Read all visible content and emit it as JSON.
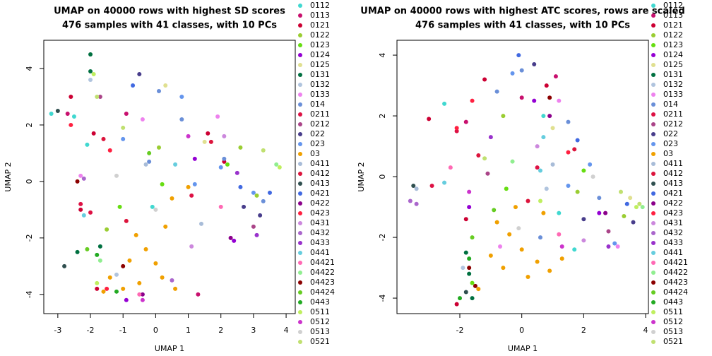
{
  "chart_data": [
    {
      "type": "scatter",
      "title": "UMAP on 40000 rows with highest SD scores",
      "subtitle": "476 samples with 41 classes, with 10 PCs",
      "x_label": "UMAP 1",
      "y_label": "UMAP 2",
      "xlim": [
        -3.43,
        4.28
      ],
      "ylim": [
        -4.68,
        5.0
      ],
      "xticks": [
        -3,
        -2,
        -1,
        0,
        1,
        2,
        3,
        4
      ],
      "yticks": [
        -4,
        -2,
        0,
        2,
        4
      ],
      "series": [
        {
          "name": "0112",
          "color": "#40d8d0",
          "x": [
            -3.2,
            -2.1,
            -2.5,
            -0.1
          ],
          "y": [
            2.4,
            1.3,
            2.3,
            -0.9
          ]
        },
        {
          "name": "0113",
          "color": "#c8106e",
          "x": [
            -2.7,
            -0.9,
            1.3
          ],
          "y": [
            2.4,
            2.4,
            -4.0
          ]
        },
        {
          "name": "0121",
          "color": "#cc0033",
          "x": [
            -2.6,
            -1.9,
            -1.8,
            -2.3,
            1.6,
            2.1
          ],
          "y": [
            3.0,
            1.7,
            -3.8,
            -1.0,
            1.7,
            0.7
          ]
        },
        {
          "name": "0122",
          "color": "#9acd32",
          "x": [
            -1.5,
            0.1,
            2.6,
            3.1
          ],
          "y": [
            -1.7,
            1.2,
            1.2,
            -0.5
          ]
        },
        {
          "name": "0123",
          "color": "#66dd11",
          "x": [
            -1.1,
            0.2,
            2.2
          ],
          "y": [
            -0.9,
            -0.1,
            0.6
          ]
        },
        {
          "name": "0124",
          "color": "#9400d3",
          "x": [
            -0.9,
            1.2,
            2.4
          ],
          "y": [
            -4.2,
            0.8,
            -2.1
          ]
        },
        {
          "name": "0125",
          "color": "#e0e090",
          "x": [
            0.3,
            1.5
          ],
          "y": [
            3.4,
            1.4
          ]
        },
        {
          "name": "0131",
          "color": "#007040",
          "x": [
            -2.0,
            -2.0,
            -2.4,
            -1.7
          ],
          "y": [
            4.5,
            3.9,
            -2.5,
            -2.3
          ]
        },
        {
          "name": "0132",
          "color": "#b0c4de",
          "x": [
            -2.0,
            -1.2
          ],
          "y": [
            3.6,
            -3.3
          ]
        },
        {
          "name": "0133",
          "color": "#ee82ee",
          "x": [
            -2.3,
            -0.4,
            1.9
          ],
          "y": [
            0.2,
            2.2,
            2.3
          ]
        },
        {
          "name": "014",
          "color": "#6a8fd8",
          "x": [
            0.1,
            0.8,
            2.1,
            3.3,
            -0.2
          ],
          "y": [
            3.2,
            2.2,
            0.8,
            -0.7,
            0.7
          ]
        },
        {
          "name": "0211",
          "color": "#dd1144",
          "x": [
            -2.3,
            -2.0,
            1.1
          ],
          "y": [
            -0.8,
            -1.1,
            -0.5
          ]
        },
        {
          "name": "0212",
          "color": "#aa4488",
          "x": [
            -1.7,
            3.0
          ],
          "y": [
            3.0,
            -1.6
          ]
        },
        {
          "name": "022",
          "color": "#483d8b",
          "x": [
            2.7,
            3.2,
            -0.5
          ],
          "y": [
            -0.9,
            -1.2,
            3.8
          ]
        },
        {
          "name": "023",
          "color": "#6495ed",
          "x": [
            2.0,
            1.2,
            3.0,
            0.8,
            -1.0
          ],
          "y": [
            0.5,
            -0.1,
            -0.4,
            3.0,
            1.5
          ]
        },
        {
          "name": "03",
          "color": "#f0a000",
          "x": [
            -1.4,
            -1.0,
            -0.5,
            0.2,
            0.6,
            -0.8,
            -0.3,
            0.3,
            0.5,
            1.0,
            -0.6,
            -1.6,
            0.0
          ],
          "y": [
            -3.4,
            -3.8,
            -3.6,
            -3.4,
            -3.8,
            -2.8,
            -2.4,
            -1.6,
            -0.6,
            -0.2,
            -1.9,
            -3.9,
            -2.9
          ]
        },
        {
          "name": "0411",
          "color": "#a8bcd8",
          "x": [
            -0.3,
            1.4
          ],
          "y": [
            0.6,
            -1.5
          ]
        },
        {
          "name": "0412",
          "color": "#dc143c",
          "x": [
            -1.6,
            -0.9,
            1.7
          ],
          "y": [
            1.5,
            -1.4,
            1.4
          ]
        },
        {
          "name": "0413",
          "color": "#2f4f4f",
          "x": [
            -3.0,
            -2.8
          ],
          "y": [
            2.5,
            -3.0
          ]
        },
        {
          "name": "0421",
          "color": "#4169e1",
          "x": [
            2.6,
            3.5,
            -0.7
          ],
          "y": [
            -0.2,
            -0.4,
            3.4
          ]
        },
        {
          "name": "0422",
          "color": "#8b008b",
          "x": [
            2.3,
            -0.4
          ],
          "y": [
            -2.0,
            -4.0
          ]
        },
        {
          "name": "0423",
          "color": "#ff2040",
          "x": [
            -2.6,
            -1.4,
            -1.5
          ],
          "y": [
            2.0,
            1.1,
            -3.8
          ]
        },
        {
          "name": "0431",
          "color": "#cc88dd",
          "x": [
            1.1,
            2.1
          ],
          "y": [
            -2.3,
            1.6
          ]
        },
        {
          "name": "0432",
          "color": "#aa66cc",
          "x": [
            -2.2,
            0.5
          ],
          "y": [
            0.1,
            -3.5
          ]
        },
        {
          "name": "0433",
          "color": "#9932cc",
          "x": [
            2.5,
            3.1
          ],
          "y": [
            0.3,
            -1.9
          ]
        },
        {
          "name": "0441",
          "color": "#66cdde",
          "x": [
            -2.2,
            0.6
          ],
          "y": [
            -1.2,
            0.6
          ]
        },
        {
          "name": "04421",
          "color": "#ff69b4",
          "x": [
            -0.5,
            2.0
          ],
          "y": [
            -4.0,
            -0.9
          ]
        },
        {
          "name": "04422",
          "color": "#90ee90",
          "x": [
            -1.7,
            3.7
          ],
          "y": [
            -2.8,
            0.6
          ]
        },
        {
          "name": "04423",
          "color": "#8b0000",
          "x": [
            -1.0,
            -2.4
          ],
          "y": [
            -3.0,
            0.0
          ]
        },
        {
          "name": "04424",
          "color": "#66cc22",
          "x": [
            -2.1,
            -0.2
          ],
          "y": [
            -2.4,
            1.0
          ]
        },
        {
          "name": "0443",
          "color": "#22aa22",
          "x": [
            -1.8,
            -1.2
          ],
          "y": [
            -2.6,
            -3.9
          ]
        },
        {
          "name": "0511",
          "color": "#bfef5f",
          "x": [
            -1.9,
            -1.8,
            3.8
          ],
          "y": [
            3.8,
            -3.6,
            0.5
          ]
        },
        {
          "name": "0512",
          "color": "#cc33cc",
          "x": [
            -0.4,
            1.0
          ],
          "y": [
            -4.2,
            1.6
          ]
        },
        {
          "name": "0513",
          "color": "#d0d0d0",
          "x": [
            -1.2,
            0.0
          ],
          "y": [
            0.2,
            -1.0
          ]
        },
        {
          "name": "0521",
          "color": "#c0e070",
          "x": [
            -1.0,
            3.3,
            -1.8
          ],
          "y": [
            1.9,
            1.1,
            3.0
          ]
        }
      ]
    },
    {
      "type": "scatter",
      "title": "UMAP on 40000 rows with highest ATC scores, rows are scaled",
      "subtitle": "476 samples with 41 classes, with 10 PCs",
      "x_label": "UMAP 1",
      "y_label": "UMAP 2",
      "xlim": [
        -4.03,
        4.09
      ],
      "ylim": [
        -4.51,
        4.49
      ],
      "xticks": [
        -2,
        0,
        2,
        4
      ],
      "yticks": [
        -4,
        -2,
        0,
        2,
        4
      ],
      "series": [
        {
          "name": "0112",
          "color": "#40d8d0",
          "x": [
            -2.5,
            0.7,
            1.2,
            1.7
          ],
          "y": [
            2.4,
            2.0,
            -1.2,
            -2.4
          ]
        },
        {
          "name": "0113",
          "color": "#c8106e",
          "x": [
            -1.8,
            0.0,
            1.1
          ],
          "y": [
            1.8,
            2.6,
            3.3
          ]
        },
        {
          "name": "0121",
          "color": "#cc0033",
          "x": [
            -3.0,
            -1.2,
            -1.8,
            -2.1,
            0.8
          ],
          "y": [
            1.9,
            3.2,
            -1.4,
            -4.2,
            3.0
          ]
        },
        {
          "name": "0122",
          "color": "#9acd32",
          "x": [
            1.8,
            3.3,
            -0.6
          ],
          "y": [
            -0.5,
            -1.3,
            2.0
          ]
        },
        {
          "name": "0123",
          "color": "#66dd11",
          "x": [
            -0.5,
            2.0,
            -1.6
          ],
          "y": [
            -0.4,
            0.2,
            -3.5
          ]
        },
        {
          "name": "0124",
          "color": "#9400d3",
          "x": [
            -1.7,
            0.4,
            2.5
          ],
          "y": [
            -1.0,
            2.5,
            -1.2
          ]
        },
        {
          "name": "0125",
          "color": "#e0e090",
          "x": [
            1.0,
            3.5
          ],
          "y": [
            1.6,
            -0.7
          ]
        },
        {
          "name": "0131",
          "color": "#007040",
          "x": [
            -1.8,
            -1.7,
            -1.6
          ],
          "y": [
            -2.5,
            -3.2,
            -4.0
          ]
        },
        {
          "name": "0132",
          "color": "#b0c4de",
          "x": [
            -1.9,
            0.8
          ],
          "y": [
            -3.0,
            -0.4
          ]
        },
        {
          "name": "0133",
          "color": "#ee82ee",
          "x": [
            1.2,
            -0.7,
            3.1
          ],
          "y": [
            2.5,
            -2.3,
            -2.3
          ]
        },
        {
          "name": "014",
          "color": "#6a8fd8",
          "x": [
            0.0,
            -0.8,
            1.5,
            2.5,
            0.6
          ],
          "y": [
            3.5,
            2.8,
            1.8,
            -0.7,
            -2.0
          ]
        },
        {
          "name": "0211",
          "color": "#dd1144",
          "x": [
            -2.9,
            -2.1,
            0.5
          ],
          "y": [
            -0.3,
            1.5,
            0.3
          ]
        },
        {
          "name": "0212",
          "color": "#aa4488",
          "x": [
            -1.1,
            2.8
          ],
          "y": [
            0.1,
            -1.8
          ]
        },
        {
          "name": "022",
          "color": "#483d8b",
          "x": [
            2.0,
            3.6,
            0.4
          ],
          "y": [
            -1.4,
            -1.5,
            3.7
          ]
        },
        {
          "name": "023",
          "color": "#6495ed",
          "x": [
            1.5,
            -0.3,
            3.0,
            2.2
          ],
          "y": [
            -0.3,
            3.4,
            -2.2,
            0.4
          ]
        },
        {
          "name": "03",
          "color": "#f0a000",
          "x": [
            -0.8,
            -0.4,
            0.0,
            0.5,
            -1.0,
            -0.6,
            0.2,
            0.9,
            0.7,
            -0.2,
            1.3,
            -1.4
          ],
          "y": [
            -1.5,
            -1.9,
            -2.4,
            -2.8,
            -2.6,
            -3.0,
            -3.3,
            -3.1,
            -1.2,
            -1.0,
            -2.7,
            -3.7
          ]
        },
        {
          "name": "0411",
          "color": "#a8bcd8",
          "x": [
            -3.4,
            1.0
          ],
          "y": [
            -0.4,
            0.4
          ]
        },
        {
          "name": "0412",
          "color": "#dc143c",
          "x": [
            -1.4,
            1.7,
            0.2
          ],
          "y": [
            0.7,
            0.9,
            -0.8
          ]
        },
        {
          "name": "0413",
          "color": "#2f4f4f",
          "x": [
            -3.5,
            -1.8
          ],
          "y": [
            -0.3,
            -3.8
          ]
        },
        {
          "name": "0421",
          "color": "#4169e1",
          "x": [
            1.8,
            3.4,
            -0.1
          ],
          "y": [
            1.2,
            -0.9,
            4.0
          ]
        },
        {
          "name": "0422",
          "color": "#8b008b",
          "x": [
            2.7,
            0.9
          ],
          "y": [
            -1.2,
            2.0
          ]
        },
        {
          "name": "0423",
          "color": "#ff2040",
          "x": [
            -2.1,
            -1.6,
            1.5
          ],
          "y": [
            1.6,
            2.5,
            0.8
          ]
        },
        {
          "name": "0431",
          "color": "#cc88dd",
          "x": [
            2.0,
            0.5
          ],
          "y": [
            -2.1,
            1.0
          ]
        },
        {
          "name": "0432",
          "color": "#aa66cc",
          "x": [
            -3.6,
            -3.4
          ],
          "y": [
            -0.8,
            -0.9
          ]
        },
        {
          "name": "0433",
          "color": "#9932cc",
          "x": [
            2.8,
            -1.0
          ],
          "y": [
            -2.3,
            1.3
          ]
        },
        {
          "name": "0441",
          "color": "#66cdde",
          "x": [
            0.7,
            -2.5,
            0.6
          ],
          "y": [
            1.3,
            -0.2,
            0.2
          ]
        },
        {
          "name": "04421",
          "color": "#ff69b4",
          "x": [
            1.2,
            -2.3
          ],
          "y": [
            -1.9,
            0.3
          ]
        },
        {
          "name": "04422",
          "color": "#90ee90",
          "x": [
            3.9,
            -0.3
          ],
          "y": [
            -1.0,
            0.5
          ]
        },
        {
          "name": "04423",
          "color": "#8b0000",
          "x": [
            -1.7,
            -1.5,
            0.9
          ],
          "y": [
            -3.0,
            -3.6,
            2.6
          ]
        },
        {
          "name": "04424",
          "color": "#66cc22",
          "x": [
            -1.6,
            -0.9
          ],
          "y": [
            -2.0,
            -1.1
          ]
        },
        {
          "name": "0443",
          "color": "#22aa22",
          "x": [
            -1.7,
            -2.0
          ],
          "y": [
            -2.7,
            -4.0
          ]
        },
        {
          "name": "0511",
          "color": "#bfef5f",
          "x": [
            3.7,
            0.6
          ],
          "y": [
            -1.0,
            -0.8
          ]
        },
        {
          "name": "0512",
          "color": "#cc33cc",
          "x": [
            -1.7,
            1.3
          ],
          "y": [
            -0.5,
            -2.3
          ]
        },
        {
          "name": "0513",
          "color": "#d0d0d0",
          "x": [
            -0.1,
            2.3
          ],
          "y": [
            -1.7,
            0.0
          ]
        },
        {
          "name": "0521",
          "color": "#c0e070",
          "x": [
            3.2,
            3.8,
            -1.2
          ],
          "y": [
            -0.5,
            -0.9,
            0.6
          ]
        }
      ]
    }
  ]
}
